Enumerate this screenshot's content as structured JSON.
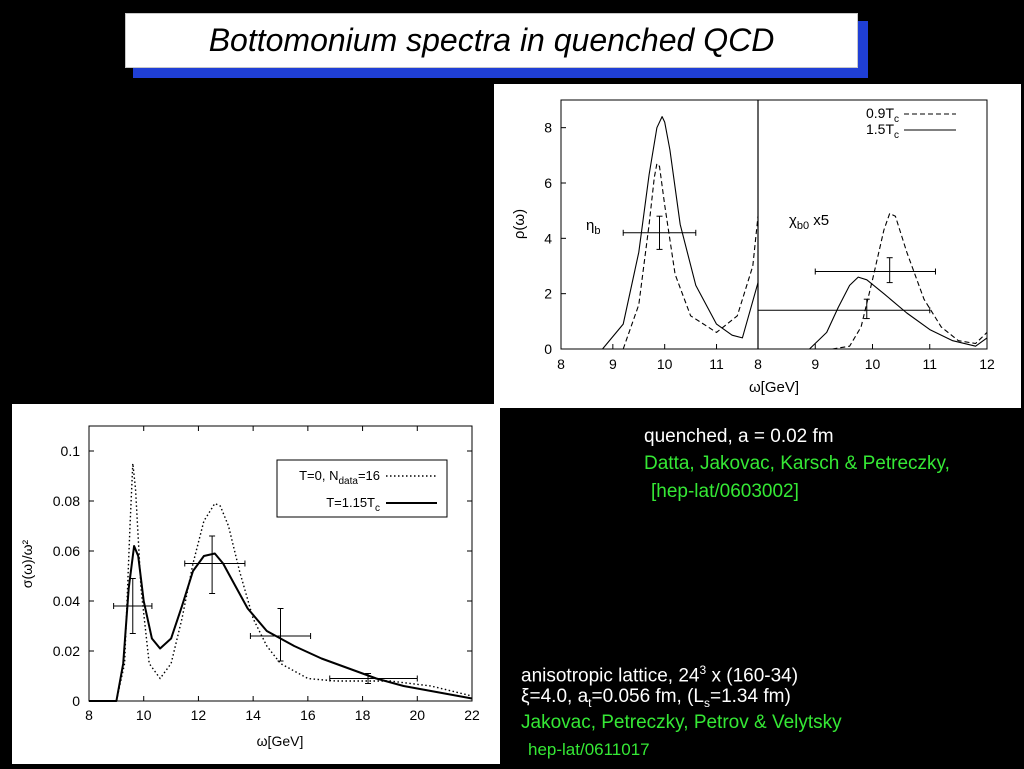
{
  "slide": {
    "title": "Bottomonium spectra in quenched QCD"
  },
  "colors": {
    "background": "#000000",
    "title_shadow": "#1f3fd6",
    "reference_green": "#35e835"
  },
  "top_note": {
    "line1": "quenched, a = 0.02 fm",
    "authors": "Datta, Jakovac, Karsch & Petreczky,",
    "ref": "[hep-lat/0603002]"
  },
  "bottom_note": {
    "line1_pre": "anisotropic lattice, 24",
    "line1_sup": "3",
    "line1_post": " x (160-34)",
    "xi": "ξ",
    "line2_a": "=4.0, a",
    "line2_t": "t",
    "line2_b": "=0.056 fm, (L",
    "line2_s": "s",
    "line2_c": "=1.34 fm)",
    "authors": "Jakovac, Petreczky, Petrov & Velytsky",
    "ref": "hep-lat/0611017"
  },
  "chart_data": [
    {
      "type": "line",
      "xlabel": "ω[GeV]",
      "ylabel": "ρ(ω)",
      "panels": [
        {
          "annotation": "ηb",
          "xlim": [
            8,
            11.8
          ],
          "xticks": [
            "8",
            "9",
            "10",
            "11"
          ],
          "series": [
            {
              "name": "0.9Tc",
              "style": "dashed",
              "x": [
                9.2,
                9.5,
                9.7,
                9.8,
                9.85,
                9.9,
                10.0,
                10.2,
                10.5,
                11.0,
                11.4,
                11.7,
                11.8
              ],
              "y": [
                0.0,
                1.6,
                4.5,
                6.2,
                6.7,
                6.6,
                5.2,
                2.7,
                1.2,
                0.6,
                1.2,
                3.0,
                4.8
              ]
            },
            {
              "name": "1.5Tc",
              "style": "solid",
              "x": [
                8.8,
                9.2,
                9.5,
                9.7,
                9.85,
                9.95,
                10.0,
                10.1,
                10.3,
                10.6,
                11.0,
                11.3,
                11.5,
                11.8
              ],
              "y": [
                0.0,
                0.9,
                3.5,
                6.3,
                8.0,
                8.4,
                8.2,
                7.2,
                4.5,
                2.3,
                0.9,
                0.5,
                0.4,
                2.4
              ]
            }
          ],
          "errorbar": {
            "x": 9.9,
            "xerr": [
              9.2,
              10.6
            ],
            "y": 4.2,
            "yerr": [
              3.6,
              4.8
            ]
          }
        },
        {
          "annotation_pre": "χ",
          "annotation_sub": "b0",
          "annotation_post": " x5",
          "xlim": [
            8,
            12
          ],
          "xticks": [
            "8",
            "9",
            "10",
            "11",
            "12"
          ],
          "series": [
            {
              "name": "0.9Tc",
              "style": "dashed",
              "x": [
                9.3,
                9.6,
                9.8,
                10.0,
                10.2,
                10.3,
                10.4,
                10.6,
                10.9,
                11.2,
                11.5,
                11.8,
                12.0
              ],
              "y": [
                0.0,
                0.1,
                0.8,
                2.5,
                4.3,
                4.9,
                4.8,
                3.5,
                1.8,
                0.8,
                0.3,
                0.2,
                0.6
              ]
            },
            {
              "name": "1.5Tc",
              "style": "solid",
              "x": [
                8.9,
                9.2,
                9.4,
                9.6,
                9.75,
                9.9,
                10.2,
                10.6,
                11.0,
                11.4,
                11.8,
                12.0
              ],
              "y": [
                0.0,
                0.6,
                1.5,
                2.3,
                2.6,
                2.5,
                2.0,
                1.3,
                0.7,
                0.3,
                0.1,
                0.4
              ]
            }
          ],
          "errorbars": [
            {
              "x": 10.3,
              "xerr": [
                9.0,
                11.1
              ],
              "y": 2.8,
              "yerr": [
                2.4,
                3.3
              ]
            },
            {
              "x": 9.9,
              "xerr": [
                8.0,
                11.0
              ],
              "y": 1.4,
              "yerr": [
                1.1,
                1.8
              ]
            }
          ]
        }
      ],
      "ylim": [
        0,
        9
      ],
      "yticks": [
        "0",
        "2",
        "4",
        "6",
        "8"
      ],
      "legend": [
        {
          "pre": "0.9T",
          "sub": "c",
          "style": "dashed"
        },
        {
          "pre": "1.5T",
          "sub": "c",
          "style": "solid"
        }
      ],
      "legend_position": "top-right"
    },
    {
      "type": "line",
      "xlabel": "ω[GeV]",
      "ylabel": "σ(ω)/ω²",
      "xlim": [
        8,
        22
      ],
      "ylim": [
        0,
        0.11
      ],
      "xticks": [
        "8",
        "10",
        "12",
        "14",
        "16",
        "18",
        "20",
        "22"
      ],
      "yticks": [
        "0",
        "0.02",
        "0.04",
        "0.06",
        "0.08",
        "0.1"
      ],
      "legend": [
        {
          "pre": "T=0, N",
          "sub": "data",
          "post": "=16",
          "style": "dotted"
        },
        {
          "pre": "T=1.15T",
          "sub": "c",
          "post": "",
          "style": "solid"
        }
      ],
      "legend_position": "top-right",
      "series": [
        {
          "name": "T=0, Ndata=16",
          "style": "dotted",
          "x": [
            8.0,
            9.0,
            9.3,
            9.5,
            9.6,
            9.7,
            9.9,
            10.2,
            10.6,
            11.0,
            11.4,
            11.8,
            12.2,
            12.6,
            12.8,
            13.1,
            13.5,
            14.0,
            14.5,
            15.0,
            16.0,
            17.0,
            19.0,
            20.5,
            22.0
          ],
          "y": [
            0.0,
            0.0,
            0.015,
            0.07,
            0.095,
            0.085,
            0.045,
            0.015,
            0.009,
            0.015,
            0.033,
            0.055,
            0.072,
            0.079,
            0.078,
            0.07,
            0.052,
            0.033,
            0.022,
            0.015,
            0.009,
            0.008,
            0.008,
            0.006,
            0.002
          ]
        },
        {
          "name": "T=1.15Tc",
          "style": "solid",
          "x": [
            8.0,
            9.0,
            9.25,
            9.45,
            9.65,
            9.8,
            10.0,
            10.3,
            10.6,
            11.0,
            11.4,
            11.8,
            12.2,
            12.6,
            12.9,
            13.3,
            13.8,
            14.5,
            15.5,
            16.5,
            17.5,
            18.5,
            19.5,
            20.5,
            22.0
          ],
          "y": [
            0.0,
            0.0,
            0.015,
            0.045,
            0.062,
            0.058,
            0.04,
            0.025,
            0.021,
            0.025,
            0.038,
            0.052,
            0.058,
            0.059,
            0.055,
            0.047,
            0.037,
            0.028,
            0.022,
            0.017,
            0.013,
            0.009,
            0.006,
            0.004,
            0.001
          ]
        }
      ],
      "errorbars": [
        {
          "x": 9.6,
          "xerr": [
            8.9,
            10.3
          ],
          "y": 0.038,
          "yerr": [
            0.027,
            0.049
          ]
        },
        {
          "x": 12.5,
          "xerr": [
            11.5,
            13.7
          ],
          "y": 0.055,
          "yerr": [
            0.043,
            0.066
          ]
        },
        {
          "x": 15.0,
          "xerr": [
            13.9,
            16.1
          ],
          "y": 0.026,
          "yerr": [
            0.016,
            0.037
          ]
        },
        {
          "x": 18.2,
          "xerr": [
            16.8,
            20.0
          ],
          "y": 0.009,
          "yerr": [
            0.007,
            0.011
          ]
        }
      ]
    }
  ]
}
